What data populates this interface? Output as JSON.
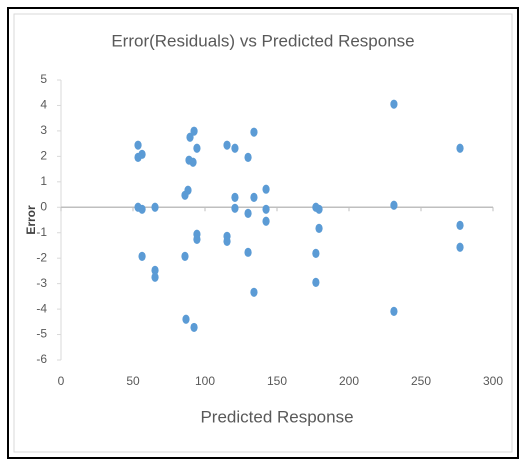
{
  "chart_data": {
    "type": "scatter",
    "title": "Error(Residuals) vs Predicted Response",
    "x_label": "Predicted Response",
    "y_label": "Error",
    "color": "#5b9bd5",
    "xlim": [
      0,
      300
    ],
    "xticks": [
      0,
      50,
      100,
      150,
      200,
      250,
      300
    ],
    "ylim": [
      -6,
      5
    ],
    "yticks": [
      -6,
      -5,
      -4,
      -3,
      -2,
      -1,
      0,
      1,
      2,
      3,
      4,
      5
    ],
    "grid": false,
    "x": [
      53.5,
      53.5,
      56.3,
      53.5,
      56.3,
      65.3,
      56.3,
      65.3,
      65.3,
      89.6,
      92.4,
      88.9,
      91.7,
      94.4,
      88.2,
      86.1,
      94.4,
      94.4,
      86.1,
      86.8,
      92.4,
      115.3,
      120.8,
      129.9,
      134.0,
      120.8,
      134.0,
      142.4,
      120.8,
      129.9,
      142.4,
      142.4,
      115.3,
      115.3,
      129.9,
      134.0,
      177.0,
      179.2,
      179.2,
      177.0,
      177.0,
      231.2,
      231.2,
      231.2,
      277.1,
      277.1,
      277.1
    ],
    "values": [
      2.44,
      1.96,
      2.08,
      0.0,
      -0.08,
      0.0,
      -1.93,
      -2.48,
      -2.75,
      2.75,
      2.99,
      1.85,
      1.77,
      2.32,
      0.67,
      0.47,
      -1.06,
      -1.26,
      -1.93,
      -4.4,
      -4.72,
      2.44,
      2.32,
      1.96,
      2.95,
      0.39,
      0.39,
      0.71,
      -0.04,
      -0.24,
      -0.08,
      -0.55,
      -1.14,
      -1.34,
      -1.77,
      -3.34,
      0.0,
      -0.08,
      -0.83,
      -1.81,
      -2.95,
      4.05,
      0.08,
      -4.09,
      2.32,
      -0.71,
      -1.57
    ]
  }
}
